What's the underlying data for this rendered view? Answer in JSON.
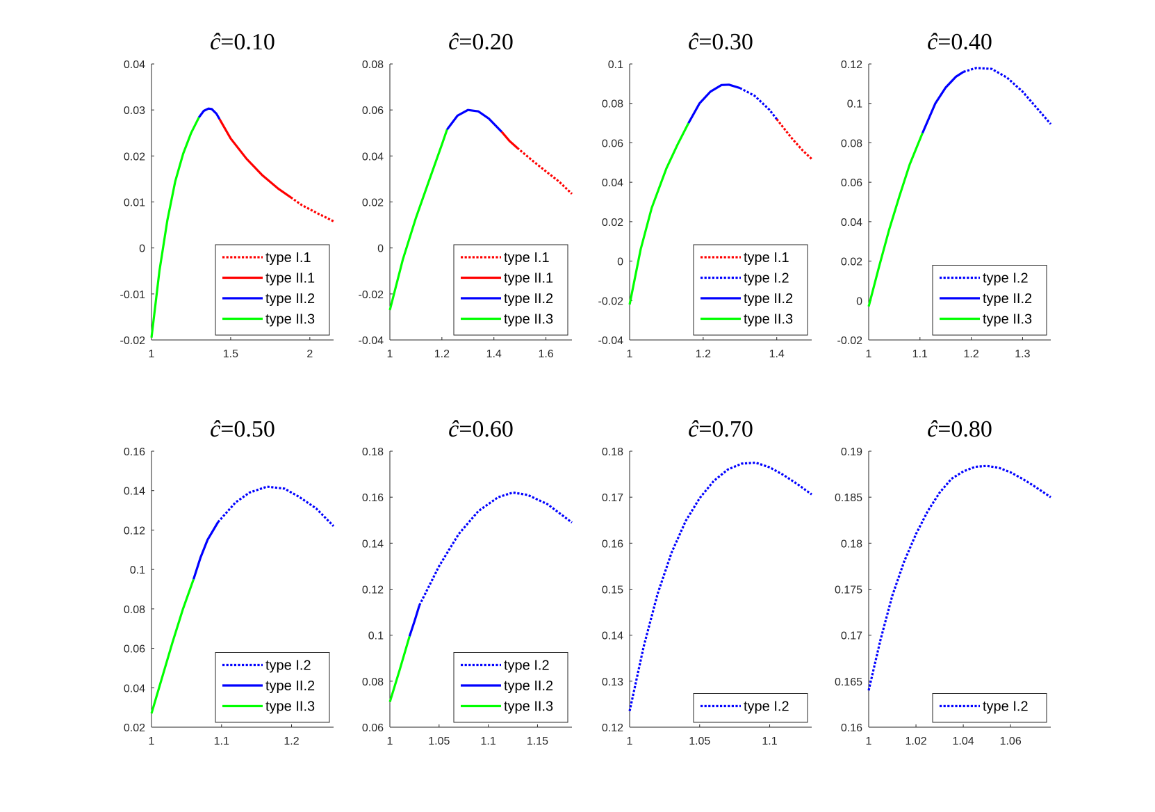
{
  "colors": {
    "red": "#ff0000",
    "blue": "#0000ff",
    "green": "#00ff00",
    "axis": "#262626"
  },
  "chart_data": [
    {
      "type": "line",
      "title_symbol": "ĉ",
      "title_value": "=0.10",
      "xlim": [
        1,
        2.15
      ],
      "ylim": [
        -0.02,
        0.04
      ],
      "xticks": [
        1,
        1.5,
        2
      ],
      "xtick_labels": [
        "1",
        "1.5",
        "2"
      ],
      "yticks": [
        -0.02,
        -0.01,
        0,
        0.01,
        0.02,
        0.03,
        0.04
      ],
      "ytick_labels": [
        "-0.02",
        "-0.01",
        "0",
        "0.01",
        "0.02",
        "0.03",
        "0.04"
      ],
      "legend": [
        {
          "label": "type I.1",
          "color": "red",
          "style": "dotted"
        },
        {
          "label": "type II.1",
          "color": "red",
          "style": "solid"
        },
        {
          "label": "type II.2",
          "color": "blue",
          "style": "solid"
        },
        {
          "label": "type II.3",
          "color": "green",
          "style": "solid"
        }
      ],
      "series": [
        {
          "name": "type II.3",
          "color": "green",
          "style": "solid",
          "x": [
            1.0,
            1.05,
            1.1,
            1.15,
            1.2,
            1.25,
            1.3
          ],
          "y": [
            -0.0195,
            -0.005,
            0.006,
            0.0145,
            0.0205,
            0.025,
            0.0284
          ]
        },
        {
          "name": "type II.2",
          "color": "blue",
          "style": "solid",
          "x": [
            1.3,
            1.33,
            1.36,
            1.38,
            1.41,
            1.43
          ],
          "y": [
            0.0284,
            0.0298,
            0.0303,
            0.0302,
            0.0292,
            0.028
          ]
        },
        {
          "name": "type II.1",
          "color": "red",
          "style": "solid",
          "x": [
            1.43,
            1.5,
            1.6,
            1.7,
            1.8,
            1.88
          ],
          "y": [
            0.028,
            0.0238,
            0.0194,
            0.0158,
            0.0129,
            0.011
          ]
        },
        {
          "name": "type I.1",
          "color": "red",
          "style": "dotted",
          "x": [
            1.88,
            1.95,
            2.05,
            2.15
          ],
          "y": [
            0.011,
            0.0093,
            0.0075,
            0.0058
          ]
        }
      ]
    },
    {
      "type": "line",
      "title_symbol": "ĉ",
      "title_value": "=0.20",
      "xlim": [
        1,
        1.7
      ],
      "ylim": [
        -0.04,
        0.08
      ],
      "xticks": [
        1,
        1.2,
        1.4,
        1.6
      ],
      "xtick_labels": [
        "1",
        "1.2",
        "1.4",
        "1.6"
      ],
      "yticks": [
        -0.04,
        -0.02,
        0,
        0.02,
        0.04,
        0.06,
        0.08
      ],
      "ytick_labels": [
        "-0.04",
        "-0.02",
        "0",
        "0.02",
        "0.04",
        "0.06",
        "0.08"
      ],
      "legend": [
        {
          "label": "type I.1",
          "color": "red",
          "style": "dotted"
        },
        {
          "label": "type II.1",
          "color": "red",
          "style": "solid"
        },
        {
          "label": "type II.2",
          "color": "blue",
          "style": "solid"
        },
        {
          "label": "type II.3",
          "color": "green",
          "style": "solid"
        }
      ],
      "series": [
        {
          "name": "type II.3",
          "color": "green",
          "style": "solid",
          "x": [
            1.0,
            1.05,
            1.1,
            1.15,
            1.2,
            1.22
          ],
          "y": [
            -0.027,
            -0.005,
            0.013,
            0.029,
            0.045,
            0.0515
          ]
        },
        {
          "name": "type II.2",
          "color": "blue",
          "style": "solid",
          "x": [
            1.22,
            1.26,
            1.3,
            1.34,
            1.38,
            1.43
          ],
          "y": [
            0.0515,
            0.0575,
            0.06,
            0.0594,
            0.0563,
            0.0505
          ]
        },
        {
          "name": "type II.1",
          "color": "red",
          "style": "solid",
          "x": [
            1.43,
            1.46,
            1.49
          ],
          "y": [
            0.0505,
            0.0465,
            0.0435
          ]
        },
        {
          "name": "type I.1",
          "color": "red",
          "style": "dotted",
          "x": [
            1.49,
            1.55,
            1.6,
            1.65,
            1.7
          ],
          "y": [
            0.0435,
            0.0378,
            0.0333,
            0.0289,
            0.0235
          ]
        }
      ]
    },
    {
      "type": "line",
      "title_symbol": "ĉ",
      "title_value": "=0.30",
      "xlim": [
        1,
        1.495
      ],
      "ylim": [
        -0.04,
        0.1
      ],
      "xticks": [
        1,
        1.2,
        1.4
      ],
      "xtick_labels": [
        "1",
        "1.2",
        "1.4"
      ],
      "yticks": [
        -0.04,
        -0.02,
        0,
        0.02,
        0.04,
        0.06,
        0.08,
        0.1
      ],
      "ytick_labels": [
        "-0.04",
        "-0.02",
        "0",
        "0.02",
        "0.04",
        "0.06",
        "0.08",
        "0.1"
      ],
      "legend": [
        {
          "label": "type I.1",
          "color": "red",
          "style": "dotted"
        },
        {
          "label": "type I.2",
          "color": "blue",
          "style": "dotted"
        },
        {
          "label": "type II.2",
          "color": "blue",
          "style": "solid"
        },
        {
          "label": "type II.3",
          "color": "green",
          "style": "solid"
        }
      ],
      "series": [
        {
          "name": "type II.3",
          "color": "green",
          "style": "solid",
          "x": [
            1.0,
            1.03,
            1.06,
            1.1,
            1.13,
            1.16
          ],
          "y": [
            -0.022,
            0.006,
            0.027,
            0.047,
            0.059,
            0.07
          ]
        },
        {
          "name": "type II.2",
          "color": "blue",
          "style": "solid",
          "x": [
            1.16,
            1.19,
            1.22,
            1.25,
            1.27,
            1.3
          ],
          "y": [
            0.07,
            0.08,
            0.086,
            0.0893,
            0.0895,
            0.0878
          ]
        },
        {
          "name": "type I.2",
          "color": "blue",
          "style": "dotted",
          "x": [
            1.3,
            1.34,
            1.38,
            1.4
          ],
          "y": [
            0.0878,
            0.0838,
            0.0768,
            0.072
          ]
        },
        {
          "name": "type I.1",
          "color": "red",
          "style": "dotted",
          "x": [
            1.4,
            1.44,
            1.47,
            1.495
          ],
          "y": [
            0.072,
            0.0625,
            0.0562,
            0.0518
          ]
        }
      ]
    },
    {
      "type": "line",
      "title_symbol": "ĉ",
      "title_value": "=0.40",
      "xlim": [
        1,
        1.355
      ],
      "ylim": [
        -0.02,
        0.12
      ],
      "xticks": [
        1,
        1.1,
        1.2,
        1.3
      ],
      "xtick_labels": [
        "1",
        "1.1",
        "1.2",
        "1.3"
      ],
      "yticks": [
        -0.02,
        0,
        0.02,
        0.04,
        0.06,
        0.08,
        0.1,
        0.12
      ],
      "ytick_labels": [
        "-0.02",
        "0",
        "0.02",
        "0.04",
        "0.06",
        "0.08",
        "0.1",
        "0.12"
      ],
      "legend": [
        {
          "label": "type I.2",
          "color": "blue",
          "style": "dotted"
        },
        {
          "label": "type II.2",
          "color": "blue",
          "style": "solid"
        },
        {
          "label": "type II.3",
          "color": "green",
          "style": "solid"
        }
      ],
      "series": [
        {
          "name": "type II.3",
          "color": "green",
          "style": "solid",
          "x": [
            1.0,
            1.02,
            1.04,
            1.06,
            1.08,
            1.105
          ],
          "y": [
            -0.003,
            0.017,
            0.036,
            0.053,
            0.069,
            0.085
          ]
        },
        {
          "name": "type II.2",
          "color": "blue",
          "style": "solid",
          "x": [
            1.105,
            1.13,
            1.15,
            1.17,
            1.185
          ],
          "y": [
            0.085,
            0.1,
            0.108,
            0.1135,
            0.116
          ]
        },
        {
          "name": "type I.2",
          "color": "blue",
          "style": "dotted",
          "x": [
            1.185,
            1.21,
            1.24,
            1.27,
            1.3,
            1.33,
            1.355
          ],
          "y": [
            0.116,
            0.118,
            0.1175,
            0.113,
            0.106,
            0.097,
            0.0895
          ]
        }
      ]
    },
    {
      "type": "line",
      "title_symbol": "ĉ",
      "title_value": "=0.50",
      "xlim": [
        1,
        1.26
      ],
      "ylim": [
        0.02,
        0.16
      ],
      "xticks": [
        1,
        1.1,
        1.2
      ],
      "xtick_labels": [
        "1",
        "1.1",
        "1.2"
      ],
      "yticks": [
        0.02,
        0.04,
        0.06,
        0.08,
        0.1,
        0.12,
        0.14,
        0.16
      ],
      "ytick_labels": [
        "0.02",
        "0.04",
        "0.06",
        "0.08",
        "0.1",
        "0.12",
        "0.14",
        "0.16"
      ],
      "legend": [
        {
          "label": "type I.2",
          "color": "blue",
          "style": "dotted"
        },
        {
          "label": "type II.2",
          "color": "blue",
          "style": "solid"
        },
        {
          "label": "type II.3",
          "color": "green",
          "style": "solid"
        }
      ],
      "series": [
        {
          "name": "type II.3",
          "color": "green",
          "style": "solid",
          "x": [
            1.0,
            1.015,
            1.03,
            1.045,
            1.06
          ],
          "y": [
            0.027,
            0.045,
            0.063,
            0.08,
            0.095
          ]
        },
        {
          "name": "type II.2",
          "color": "blue",
          "style": "solid",
          "x": [
            1.06,
            1.07,
            1.08,
            1.095
          ],
          "y": [
            0.095,
            0.106,
            0.115,
            0.124
          ]
        },
        {
          "name": "type I.2",
          "color": "blue",
          "style": "dotted",
          "x": [
            1.095,
            1.12,
            1.14,
            1.165,
            1.19,
            1.21,
            1.235,
            1.26
          ],
          "y": [
            0.124,
            0.134,
            0.139,
            0.142,
            0.141,
            0.137,
            0.131,
            0.122
          ]
        }
      ]
    },
    {
      "type": "line",
      "title_symbol": "ĉ",
      "title_value": "=0.60",
      "xlim": [
        1,
        1.185
      ],
      "ylim": [
        0.06,
        0.18
      ],
      "xticks": [
        1,
        1.05,
        1.1,
        1.15
      ],
      "xtick_labels": [
        "1",
        "1.05",
        "1.1",
        "1.15"
      ],
      "yticks": [
        0.06,
        0.08,
        0.1,
        0.12,
        0.14,
        0.16,
        0.18
      ],
      "ytick_labels": [
        "0.06",
        "0.08",
        "0.1",
        "0.12",
        "0.14",
        "0.16",
        "0.18"
      ],
      "legend": [
        {
          "label": "type I.2",
          "color": "blue",
          "style": "dotted"
        },
        {
          "label": "type II.2",
          "color": "blue",
          "style": "solid"
        },
        {
          "label": "type II.3",
          "color": "green",
          "style": "solid"
        }
      ],
      "series": [
        {
          "name": "type II.3",
          "color": "green",
          "style": "solid",
          "x": [
            1.0,
            1.01,
            1.02
          ],
          "y": [
            0.071,
            0.085,
            0.0995
          ]
        },
        {
          "name": "type II.2",
          "color": "blue",
          "style": "solid",
          "x": [
            1.02,
            1.025,
            1.03
          ],
          "y": [
            0.0995,
            0.106,
            0.113
          ]
        },
        {
          "name": "type I.2",
          "color": "blue",
          "style": "dotted",
          "x": [
            1.03,
            1.05,
            1.07,
            1.09,
            1.11,
            1.125,
            1.14,
            1.16,
            1.185
          ],
          "y": [
            0.113,
            0.13,
            0.144,
            0.154,
            0.16,
            0.162,
            0.161,
            0.157,
            0.149
          ]
        }
      ]
    },
    {
      "type": "line",
      "title_symbol": "ĉ",
      "title_value": "=0.70",
      "xlim": [
        1,
        1.13
      ],
      "ylim": [
        0.12,
        0.18
      ],
      "xticks": [
        1,
        1.05,
        1.1
      ],
      "xtick_labels": [
        "1",
        "1.05",
        "1.1"
      ],
      "yticks": [
        0.12,
        0.13,
        0.14,
        0.15,
        0.16,
        0.17,
        0.18
      ],
      "ytick_labels": [
        "0.12",
        "0.13",
        "0.14",
        "0.15",
        "0.16",
        "0.17",
        "0.18"
      ],
      "legend": [
        {
          "label": "type I.2",
          "color": "blue",
          "style": "dotted"
        }
      ],
      "series": [
        {
          "name": "type I.2",
          "color": "blue",
          "style": "dotted",
          "x": [
            1.0,
            1.01,
            1.02,
            1.03,
            1.04,
            1.05,
            1.06,
            1.07,
            1.08,
            1.09,
            1.1,
            1.11,
            1.12,
            1.13
          ],
          "y": [
            0.1235,
            0.1375,
            0.149,
            0.158,
            0.1648,
            0.1698,
            0.1735,
            0.176,
            0.1773,
            0.1775,
            0.1765,
            0.1748,
            0.1728,
            0.1706
          ]
        }
      ]
    },
    {
      "type": "line",
      "title_symbol": "ĉ",
      "title_value": "=0.80",
      "xlim": [
        1,
        1.077
      ],
      "ylim": [
        0.16,
        0.19
      ],
      "xticks": [
        1,
        1.02,
        1.04,
        1.06
      ],
      "xtick_labels": [
        "1",
        "1.02",
        "1.04",
        "1.06"
      ],
      "yticks": [
        0.16,
        0.165,
        0.17,
        0.175,
        0.18,
        0.185,
        0.19
      ],
      "ytick_labels": [
        "0.16",
        "0.165",
        "0.17",
        "0.175",
        "0.18",
        "0.185",
        "0.19"
      ],
      "legend": [
        {
          "label": "type I.2",
          "color": "blue",
          "style": "dotted"
        }
      ],
      "series": [
        {
          "name": "type I.2",
          "color": "blue",
          "style": "dotted",
          "x": [
            1.0,
            1.005,
            1.01,
            1.015,
            1.02,
            1.025,
            1.03,
            1.035,
            1.04,
            1.045,
            1.05,
            1.055,
            1.06,
            1.065,
            1.07,
            1.077
          ],
          "y": [
            0.164,
            0.1695,
            0.1743,
            0.178,
            0.181,
            0.1835,
            0.1855,
            0.187,
            0.1878,
            0.1883,
            0.1884,
            0.1882,
            0.1877,
            0.187,
            0.1862,
            0.185
          ]
        }
      ]
    }
  ]
}
